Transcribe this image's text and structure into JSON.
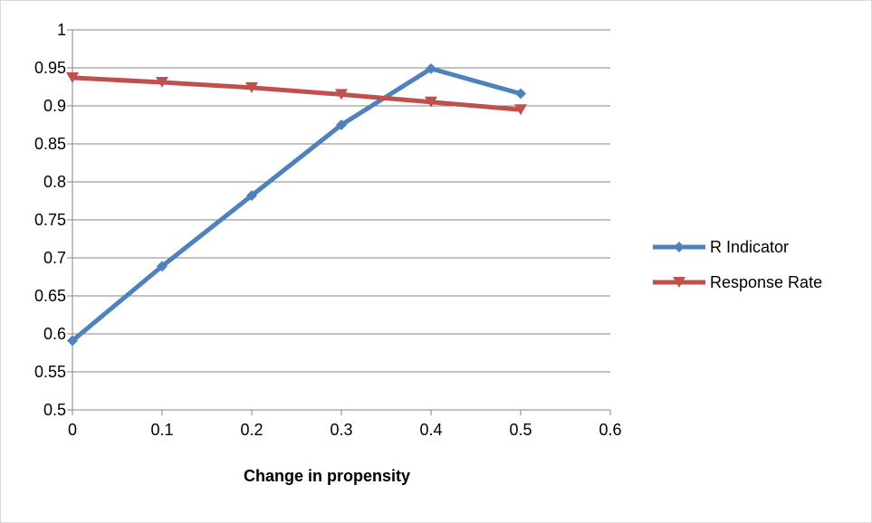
{
  "chart_data": {
    "type": "line",
    "title": "",
    "xlabel": "Change in propensity",
    "ylabel": "",
    "x": [
      0,
      0.1,
      0.2,
      0.3,
      0.4,
      0.5
    ],
    "xlim": [
      0,
      0.6
    ],
    "ylim": [
      0.5,
      1
    ],
    "x_ticks": [
      "0",
      "0.1",
      "0.2",
      "0.3",
      "0.4",
      "0.5",
      "0.6"
    ],
    "y_ticks": [
      "0.5",
      "0.55",
      "0.6",
      "0.65",
      "0.7",
      "0.75",
      "0.8",
      "0.85",
      "0.9",
      "0.95",
      "1"
    ],
    "grid": true,
    "legend_position": "right",
    "series": [
      {
        "name": "R Indicator",
        "color": "#4f81bd",
        "marker": "diamond",
        "values": [
          0.591,
          0.689,
          0.782,
          0.875,
          0.949,
          0.916
        ]
      },
      {
        "name": "Response Rate",
        "color": "#c0504d",
        "marker": "triangle-down",
        "values": [
          0.937,
          0.931,
          0.924,
          0.915,
          0.905,
          0.895
        ]
      }
    ]
  }
}
